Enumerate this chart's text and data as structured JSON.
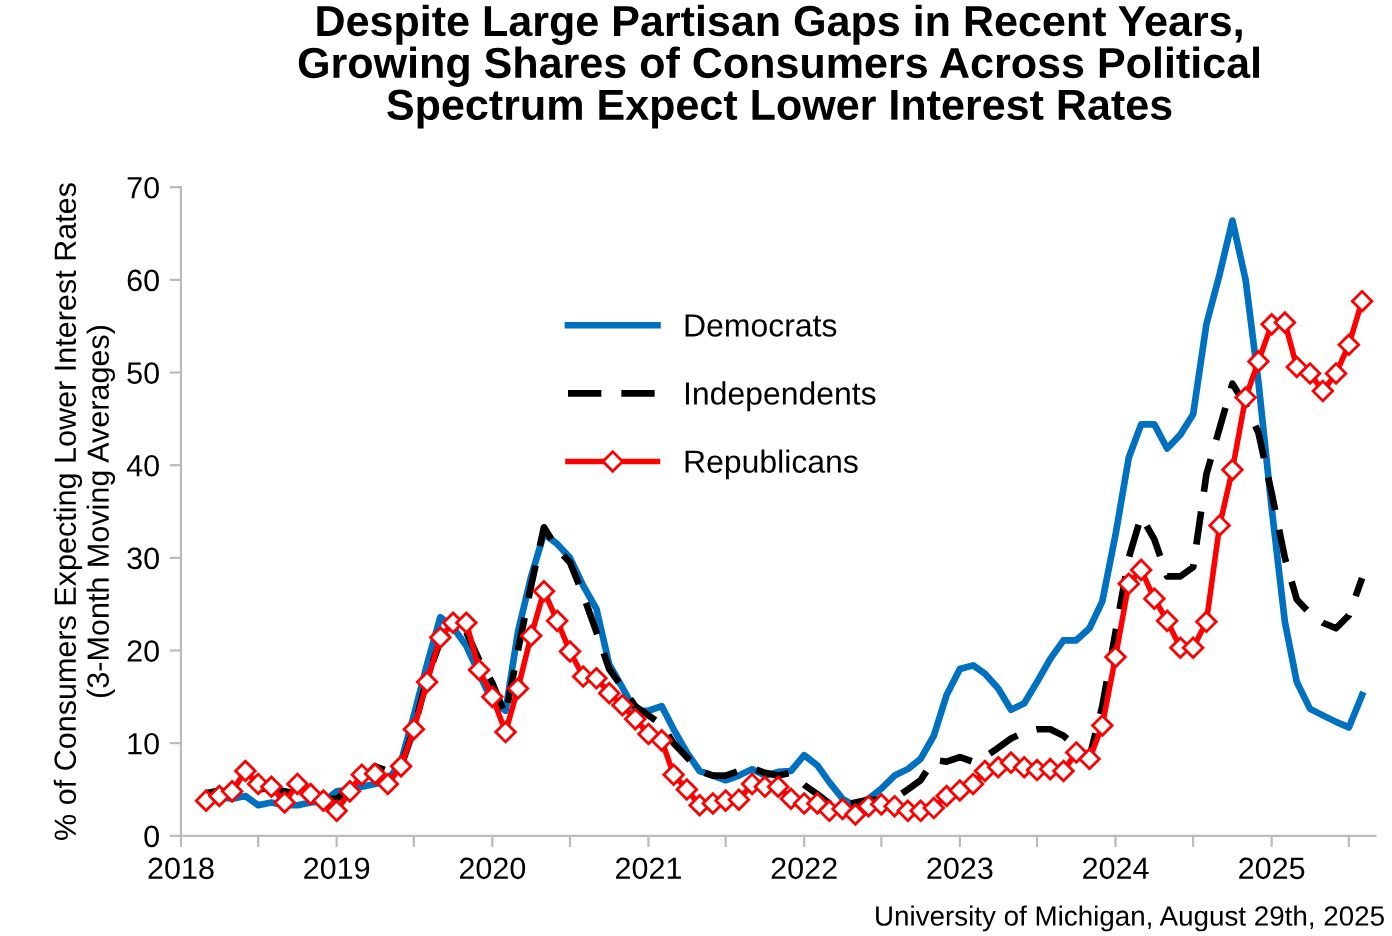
{
  "chart_data": {
    "type": "line",
    "title": "Despite Large Partisan Gaps in Recent Years,\nGrowing Shares of Consumers Across Political\nSpectrum Expect Lower Interest Rates",
    "ylabel": "% of Consumers Expecting Lower Interest Rates\n(3-Month Moving Averages)",
    "annotations": [
      "University of Michigan, August 29th, 2025"
    ],
    "x": [
      "2018-03",
      "2018-04",
      "2018-05",
      "2018-06",
      "2018-07",
      "2018-08",
      "2018-09",
      "2018-10",
      "2018-11",
      "2018-12",
      "2019-01",
      "2019-02",
      "2019-03",
      "2019-04",
      "2019-05",
      "2019-06",
      "2019-07",
      "2019-08",
      "2019-09",
      "2019-10",
      "2019-11",
      "2019-12",
      "2020-01",
      "2020-02",
      "2020-03",
      "2020-04",
      "2020-05",
      "2020-06",
      "2020-07",
      "2020-08",
      "2020-09",
      "2020-10",
      "2020-11",
      "2020-12",
      "2021-01",
      "2021-02",
      "2021-03",
      "2021-04",
      "2021-05",
      "2021-06",
      "2021-07",
      "2021-08",
      "2021-09",
      "2021-10",
      "2021-11",
      "2021-12",
      "2022-01",
      "2022-02",
      "2022-03",
      "2022-04",
      "2022-05",
      "2022-06",
      "2022-07",
      "2022-08",
      "2022-09",
      "2022-10",
      "2022-11",
      "2022-12",
      "2023-01",
      "2023-02",
      "2023-03",
      "2023-04",
      "2023-05",
      "2023-06",
      "2023-07",
      "2023-08",
      "2023-09",
      "2023-10",
      "2023-11",
      "2023-12",
      "2024-01",
      "2024-02",
      "2024-03",
      "2024-04",
      "2024-05",
      "2024-06",
      "2024-07",
      "2024-08",
      "2024-09",
      "2024-10",
      "2024-11",
      "2024-12",
      "2025-01",
      "2025-02",
      "2025-03",
      "2025-04",
      "2025-05",
      "2025-06",
      "2025-07",
      "2025-08"
    ],
    "series": [
      {
        "name": "Democrats",
        "color": "#0070c0",
        "line_style": "solid",
        "marker": "none",
        "values": [
          4.3,
          4.2,
          4.0,
          4.3,
          3.3,
          3.6,
          3.3,
          3.3,
          3.6,
          3.7,
          4.8,
          5.0,
          5.3,
          5.6,
          6.0,
          8.0,
          13.0,
          18.5,
          23.6,
          22.5,
          20.5,
          17.5,
          14.5,
          13.5,
          22.0,
          28.0,
          32.6,
          31.5,
          30.0,
          27.0,
          24.5,
          18.5,
          16.0,
          13.5,
          13.5,
          14.0,
          11.5,
          9.0,
          7.0,
          6.5,
          6.0,
          6.5,
          7.2,
          6.5,
          6.9,
          7.0,
          8.7,
          7.6,
          5.8,
          4.0,
          3.2,
          4.0,
          5.1,
          6.5,
          7.2,
          8.3,
          10.8,
          15.2,
          18.0,
          18.4,
          17.5,
          15.9,
          13.6,
          14.3,
          16.6,
          19.1,
          21.1,
          21.1,
          22.4,
          25.3,
          32.5,
          40.8,
          44.4,
          44.4,
          41.8,
          43.3,
          45.5,
          55.2,
          60.6,
          66.4,
          60.0,
          49.0,
          35.4,
          23.1,
          16.6,
          13.7,
          13.0,
          12.3,
          11.7,
          15.2
        ]
      },
      {
        "name": "Independents",
        "color": "#000000",
        "line_style": "dashed",
        "marker": "none",
        "values": [
          4.6,
          4.9,
          4.6,
          4.8,
          5.0,
          5.2,
          4.8,
          4.5,
          4.2,
          4.0,
          4.0,
          5.0,
          6.0,
          7.5,
          7.0,
          7.5,
          11.5,
          17.0,
          21.0,
          22.5,
          22.0,
          19.0,
          16.5,
          13.0,
          20.0,
          27.0,
          33.3,
          31.0,
          29.5,
          26.0,
          22.0,
          18.0,
          16.0,
          14.0,
          13.0,
          12.0,
          10.0,
          8.5,
          7.0,
          6.5,
          6.5,
          7.0,
          7.3,
          6.8,
          6.5,
          6.8,
          5.5,
          4.5,
          3.5,
          3.3,
          3.6,
          3.9,
          3.9,
          4.0,
          5.0,
          6.0,
          8.2,
          8.0,
          8.5,
          8.0,
          8.5,
          9.5,
          10.5,
          11.2,
          11.5,
          11.5,
          10.8,
          9.6,
          8.5,
          14.0,
          22.0,
          30.0,
          34.5,
          32.0,
          28.0,
          28.0,
          29.0,
          39.0,
          44.0,
          48.8,
          46.5,
          43.5,
          37.0,
          30.0,
          25.5,
          24.0,
          23.0,
          22.4,
          23.8,
          27.8
        ]
      },
      {
        "name": "Republicans",
        "color": "#ff0000",
        "line_style": "solid",
        "marker": "diamond",
        "values": [
          3.8,
          4.3,
          4.8,
          7.0,
          5.6,
          5.3,
          3.6,
          5.6,
          4.5,
          3.8,
          2.7,
          4.8,
          6.6,
          6.7,
          5.6,
          7.5,
          11.5,
          16.6,
          21.4,
          23.0,
          23.0,
          17.9,
          15.0,
          11.2,
          15.9,
          21.6,
          26.4,
          23.2,
          19.9,
          17.2,
          17.0,
          15.4,
          14.1,
          12.6,
          11.0,
          10.3,
          6.6,
          5.0,
          3.3,
          3.5,
          3.8,
          3.9,
          5.6,
          5.3,
          5.3,
          4.0,
          3.5,
          3.5,
          2.7,
          2.9,
          2.3,
          3.2,
          3.4,
          3.2,
          2.7,
          2.7,
          3.0,
          4.3,
          4.9,
          5.6,
          7.0,
          7.4,
          7.9,
          7.4,
          7.1,
          7.2,
          7.0,
          9.0,
          8.3,
          11.9,
          19.3,
          27.2,
          28.7,
          25.6,
          23.2,
          20.3,
          20.3,
          23.1,
          33.5,
          39.5,
          47.3,
          51.2,
          55.2,
          55.4,
          50.6,
          49.9,
          48.0,
          49.9,
          53.0,
          57.7
        ]
      }
    ],
    "xlim": [
      "2018",
      "2025-09"
    ],
    "xticks": [
      "2018",
      {
        "value": "2018-07",
        "label": null
      },
      "2019",
      {
        "value": "2019-07",
        "label": null
      },
      "2020",
      {
        "value": "2020-07",
        "label": null
      },
      "2021",
      {
        "value": "2021-07",
        "label": null
      },
      "2022",
      {
        "value": "2022-07",
        "label": null
      },
      "2023",
      {
        "value": "2023-07",
        "label": null
      },
      "2024",
      {
        "value": "2024-07",
        "label": null
      },
      "2025",
      {
        "value": "2025-07",
        "label": null
      }
    ],
    "ylim": [
      0,
      70
    ],
    "yticks": [
      0,
      10,
      20,
      30,
      40,
      50,
      60,
      70
    ],
    "grid": false,
    "legend": "top left"
  }
}
